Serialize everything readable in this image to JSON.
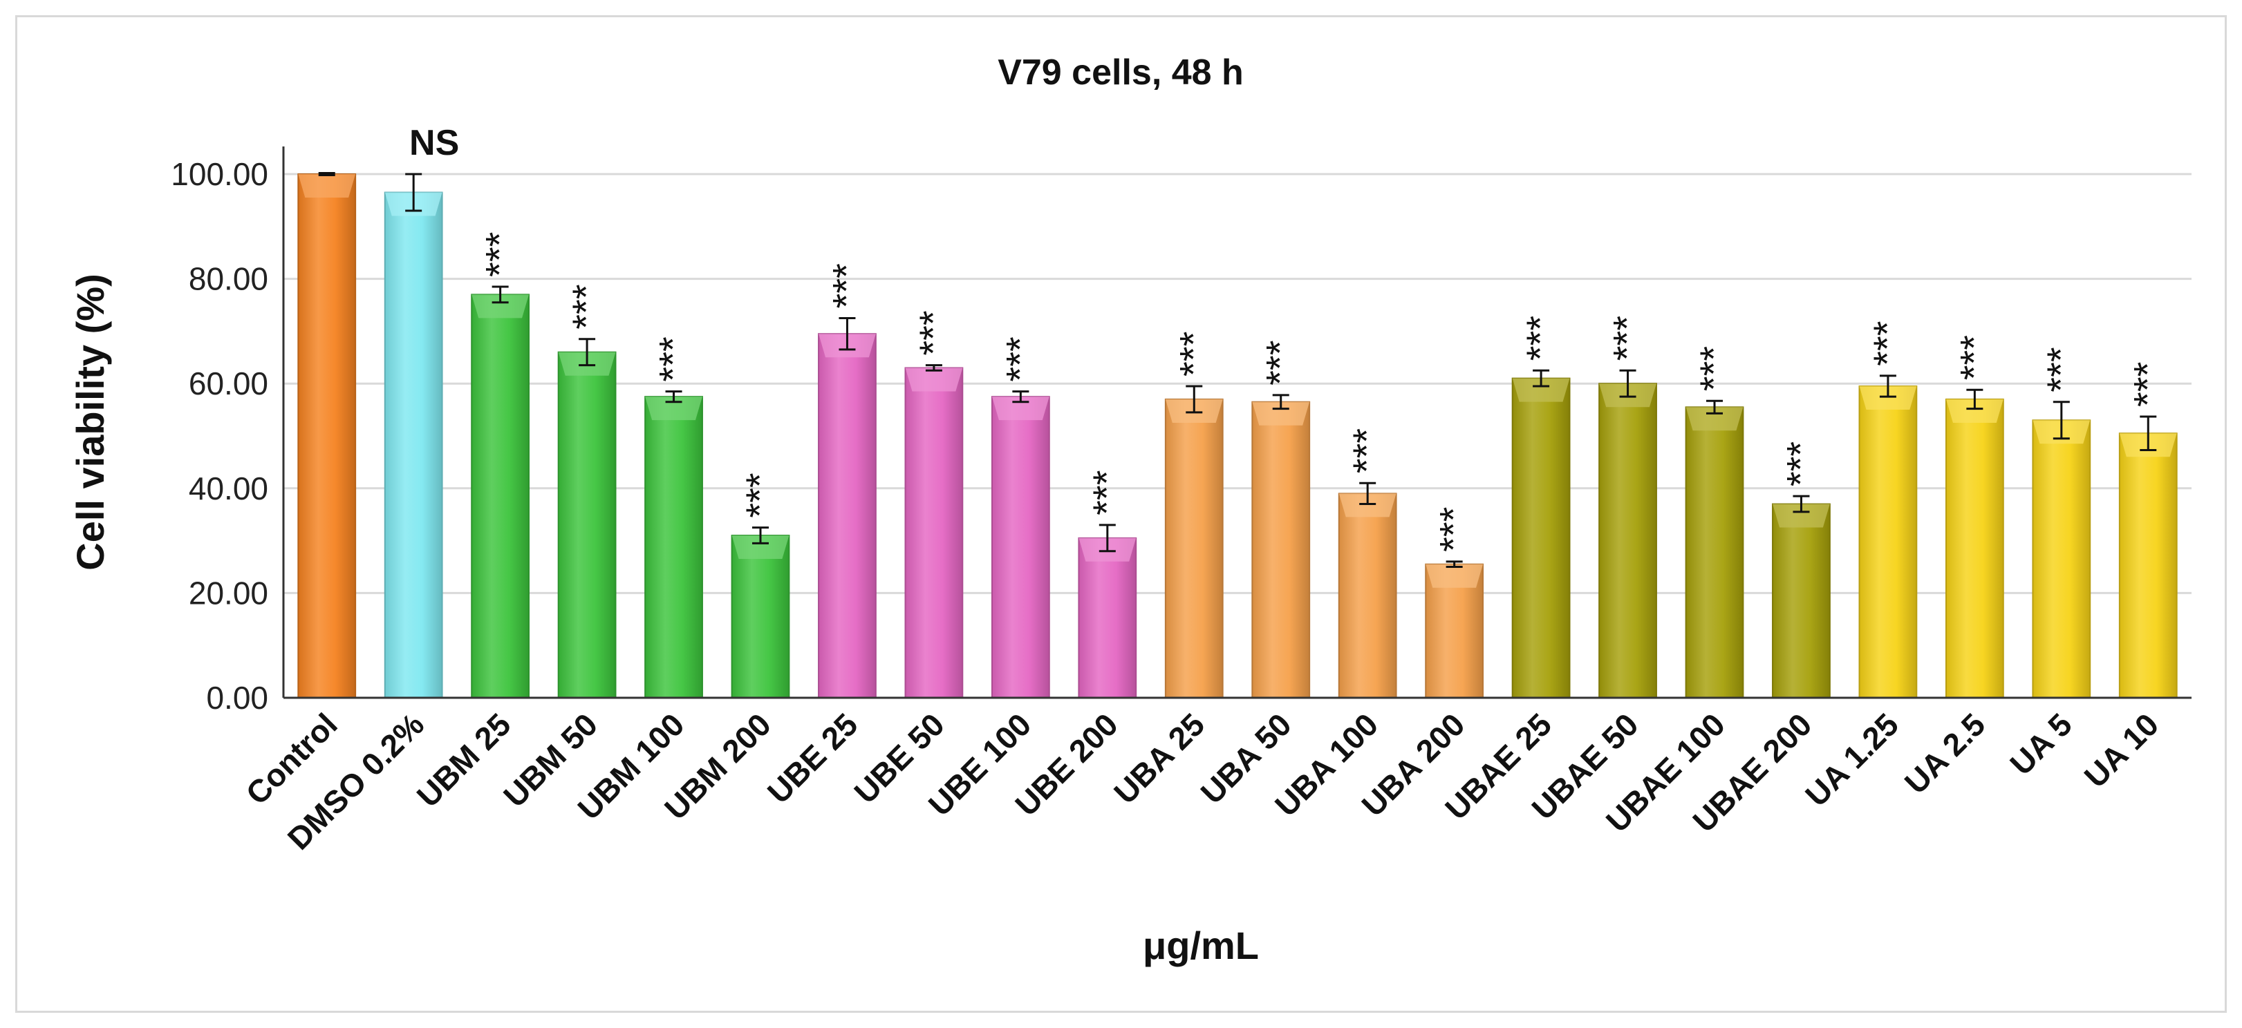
{
  "chart_data": {
    "type": "bar",
    "title": "V79 cells, 48 h",
    "xlabel": "μg/mL",
    "ylabel": "Cell viability  (%)",
    "ylim": [
      0,
      100
    ],
    "ytick_labels": [
      "0.00",
      "20.00",
      "40.00",
      "60.00",
      "80.00",
      "100.00"
    ],
    "grid": true,
    "legend": "none",
    "categories": [
      "Control",
      "DMSO 0.2%",
      "UBM 25",
      "UBM 50",
      "UBM 100",
      "UBM 200",
      "UBE 25",
      "UBE 50",
      "UBE 100",
      "UBE 200",
      "UBA 25",
      "UBA 50",
      "UBA 100",
      "UBA 200",
      "UBAE 25",
      "UBAE 50",
      "UBAE 100",
      "UBAE 200",
      "UA 1.25",
      "UA 2.5",
      "UA 5",
      "UA 10"
    ],
    "values": [
      100.0,
      96.5,
      77.0,
      66.0,
      57.5,
      31.0,
      69.5,
      63.0,
      57.5,
      30.5,
      57.0,
      56.5,
      39.0,
      25.5,
      61.0,
      60.0,
      55.5,
      37.0,
      59.5,
      57.0,
      53.0,
      50.5
    ],
    "errors": [
      0.2,
      3.5,
      1.5,
      2.5,
      1.0,
      1.5,
      3.0,
      0.5,
      1.0,
      2.5,
      2.5,
      1.3,
      2.0,
      0.5,
      1.5,
      2.5,
      1.2,
      1.5,
      2.0,
      1.8,
      3.5,
      3.2
    ],
    "significance": [
      "",
      "NS",
      "***",
      "***",
      "***",
      "***",
      "***",
      "***",
      "***",
      "***",
      "***",
      "***",
      "***",
      "***",
      "***",
      "***",
      "***",
      "***",
      "***",
      "***",
      "***",
      "***"
    ],
    "bar_colors": [
      "#f58220",
      "#7fe8f0",
      "#3cc43c",
      "#3cc43c",
      "#3cc43c",
      "#3cc43c",
      "#e566c3",
      "#e566c3",
      "#e566c3",
      "#e566c3",
      "#f5a04a",
      "#f5a04a",
      "#f5a04a",
      "#f5a04a",
      "#a6a00a",
      "#a6a00a",
      "#a6a00a",
      "#a6a00a",
      "#f7d316",
      "#f7d316",
      "#f7d316",
      "#f7d316"
    ]
  }
}
